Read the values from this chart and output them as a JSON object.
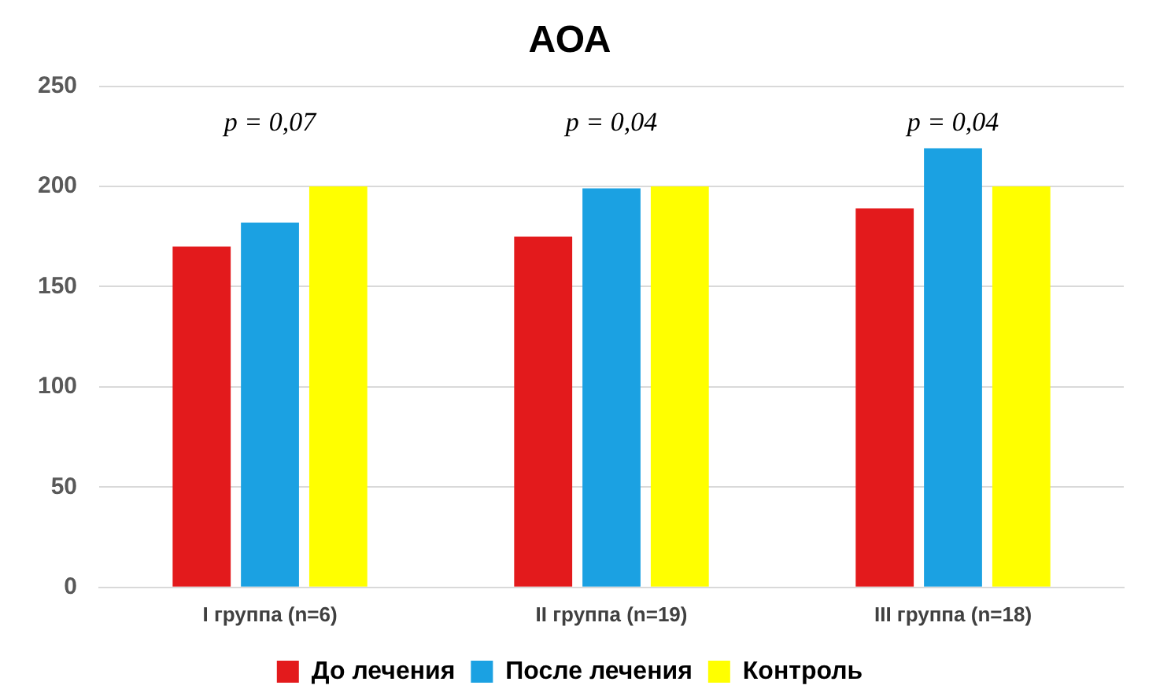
{
  "chart_data": {
    "type": "bar",
    "title": "АОА",
    "categories": [
      "I группа (n=6)",
      "II группа (n=19)",
      "III группа (n=18)"
    ],
    "series": [
      {
        "name": "До лечения",
        "color": "#e31a1c",
        "values": [
          170,
          175,
          189
        ]
      },
      {
        "name": "После лечения",
        "color": "#1ba1e2",
        "values": [
          182,
          199,
          219
        ]
      },
      {
        "name": "Контроль",
        "color": "#ffff00",
        "values": [
          200,
          200,
          200
        ]
      }
    ],
    "ylim": [
      0,
      250
    ],
    "yticks": [
      0,
      50,
      100,
      150,
      200,
      250
    ],
    "grid": "y",
    "legend": "bottom",
    "annotations": [
      "p = 0,07",
      "p = 0,04",
      "p = 0,04"
    ]
  }
}
